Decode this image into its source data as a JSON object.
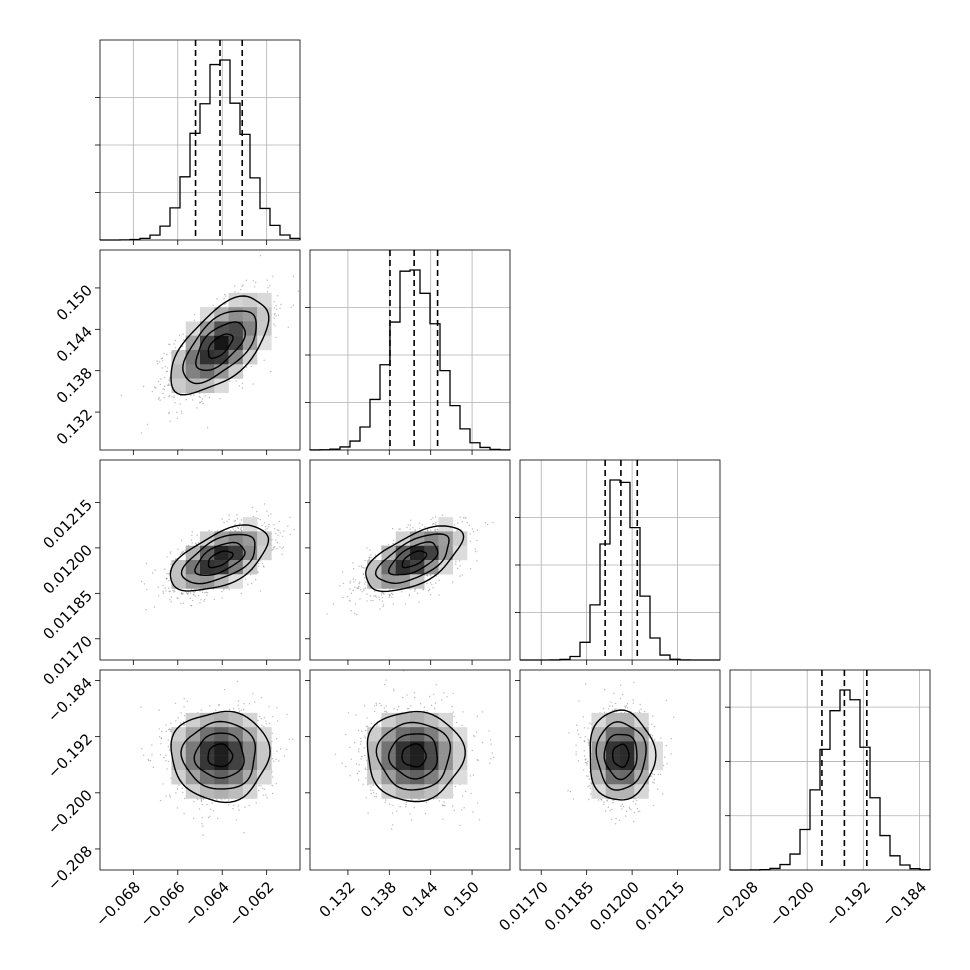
{
  "chart_data": {
    "type": "corner",
    "params": [
      {
        "range": [
          -0.0695,
          -0.0605
        ],
        "ticks": [
          -0.068,
          -0.066,
          -0.064,
          -0.062
        ],
        "tick_labels": [
          "−0.068",
          "−0.066",
          "−0.064",
          "−0.062"
        ],
        "mean": -0.0641,
        "sd": 0.0011,
        "quantiles": [
          -0.0652,
          -0.0641,
          -0.0631
        ]
      },
      {
        "range": [
          0.1265,
          0.1555
        ],
        "ticks": [
          0.132,
          0.138,
          0.144,
          0.15
        ],
        "tick_labels": [
          "0.132",
          "0.138",
          "0.144",
          "0.150"
        ],
        "mean": 0.1416,
        "sd": 0.0035,
        "quantiles": [
          0.1381,
          0.1416,
          0.145
        ]
      },
      {
        "range": [
          0.01163,
          0.01229
        ],
        "ticks": [
          0.0117,
          0.01185,
          0.012,
          0.01215
        ],
        "tick_labels": [
          "0.01170",
          "0.01185",
          "0.01200",
          "0.01215"
        ],
        "mean": 0.011963,
        "sd": 5.4e-05,
        "quantiles": [
          0.011911,
          0.011963,
          0.012017
        ]
      },
      {
        "range": [
          -0.211,
          -0.1825
        ],
        "ticks": [
          -0.208,
          -0.2,
          -0.192,
          -0.184
        ],
        "tick_labels": [
          "−0.208",
          "−0.200",
          "−0.192",
          "−0.184"
        ],
        "mean": -0.1947,
        "sd": 0.0032,
        "quantiles": [
          -0.1979,
          -0.1947,
          -0.1915
        ]
      }
    ],
    "diagonal_hist_ticks": [
      [
        0.25,
        0.5,
        0.75
      ],
      [
        0.25,
        0.5,
        0.75
      ],
      [
        0.25,
        0.5,
        0.75
      ],
      [
        0.3,
        0.6,
        0.9
      ]
    ],
    "correlations": [
      [
        0,
        1,
        0.6
      ],
      [
        0,
        2,
        0.55
      ],
      [
        1,
        2,
        0.6
      ],
      [
        0,
        3,
        0.0
      ],
      [
        1,
        3,
        0.0
      ],
      [
        2,
        3,
        0.0
      ]
    ],
    "contour_levels_sigma": [
      0.5,
      1.0,
      1.5,
      2.0
    ],
    "grid": true,
    "colors": {
      "ink": "#000000",
      "grid": "#b0b0b0",
      "points": "#7f7f7f"
    }
  }
}
